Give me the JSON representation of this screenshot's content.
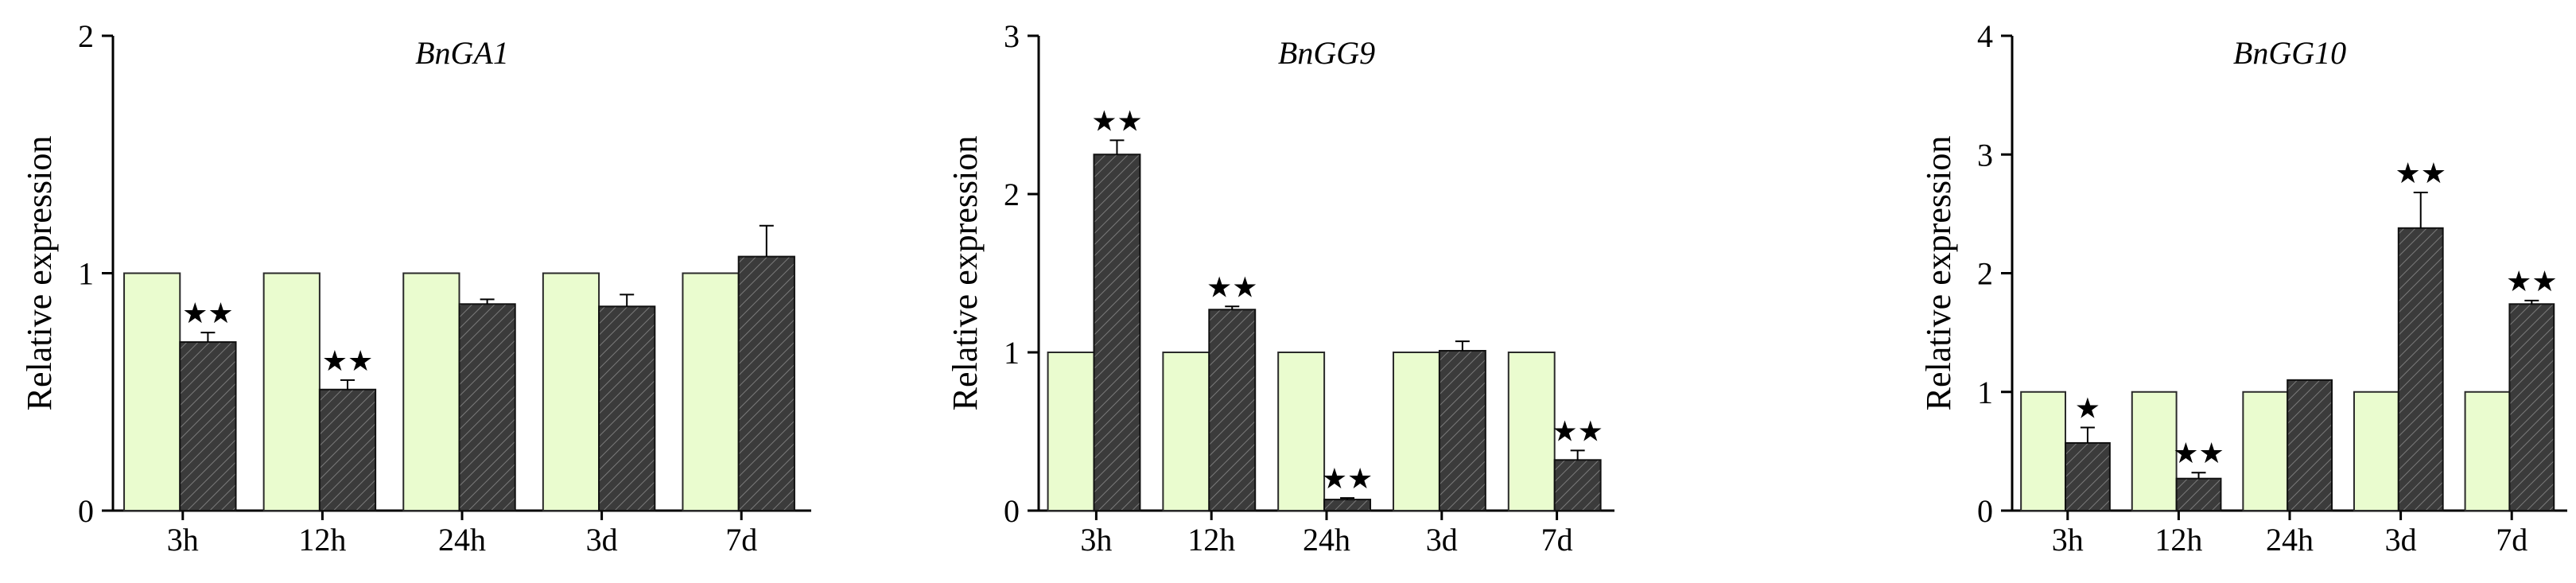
{
  "colors": {
    "control": "#eafccf",
    "treatment": "#3b3b3b",
    "hatch": "#7a7a7a"
  },
  "chart_data": [
    {
      "type": "bar",
      "title": "BnGA1",
      "ylabel": "Relative expression",
      "xlabel": "",
      "ylim": [
        0,
        2
      ],
      "yticks": [
        "0",
        "1",
        "2"
      ],
      "categories": [
        "3h",
        "12h",
        "24h",
        "3d",
        "7d"
      ],
      "grid": false,
      "series": [
        {
          "values": [
            1,
            1,
            1,
            1,
            1
          ],
          "errors": [
            0,
            0,
            0,
            0,
            0
          ]
        },
        {
          "values": [
            0.71,
            0.51,
            0.87,
            0.86,
            1.07
          ],
          "errors": [
            0.04,
            0.04,
            0.02,
            0.05,
            0.13
          ]
        }
      ],
      "significance": [
        "★★",
        "★★",
        "",
        "",
        ""
      ]
    },
    {
      "type": "bar",
      "title": "BnGG9",
      "ylabel": "Relative expression",
      "xlabel": "",
      "ylim": [
        0,
        3
      ],
      "yticks": [
        "0",
        "1",
        "2",
        "3"
      ],
      "categories": [
        "3h",
        "12h",
        "24h",
        "3d",
        "7d"
      ],
      "grid": false,
      "series": [
        {
          "values": [
            1,
            1,
            1,
            1,
            1
          ],
          "errors": [
            0,
            0,
            0,
            0,
            0
          ]
        },
        {
          "values": [
            2.25,
            1.27,
            0.07,
            1.01,
            0.32
          ],
          "errors": [
            0.09,
            0.02,
            0.01,
            0.06,
            0.06
          ]
        }
      ],
      "significance": [
        "★★",
        "★★",
        "★★",
        "",
        "★★"
      ]
    },
    {
      "type": "bar",
      "title": "BnGG10",
      "ylabel": "Relative expression",
      "xlabel": "",
      "ylim": [
        0,
        4
      ],
      "yticks": [
        "0",
        "1",
        "2",
        "3",
        "4"
      ],
      "categories": [
        "3h",
        "12h",
        "24h",
        "3d",
        "7d"
      ],
      "grid": false,
      "series": [
        {
          "values": [
            1,
            1,
            1,
            1,
            1
          ],
          "errors": [
            0,
            0,
            0,
            0,
            0
          ]
        },
        {
          "values": [
            0.57,
            0.27,
            1.1,
            2.38,
            1.74
          ],
          "errors": [
            0.13,
            0.05,
            0,
            0.3,
            0.03
          ]
        }
      ],
      "significance": [
        "★",
        "★★",
        "",
        "★★",
        "★★"
      ]
    }
  ]
}
